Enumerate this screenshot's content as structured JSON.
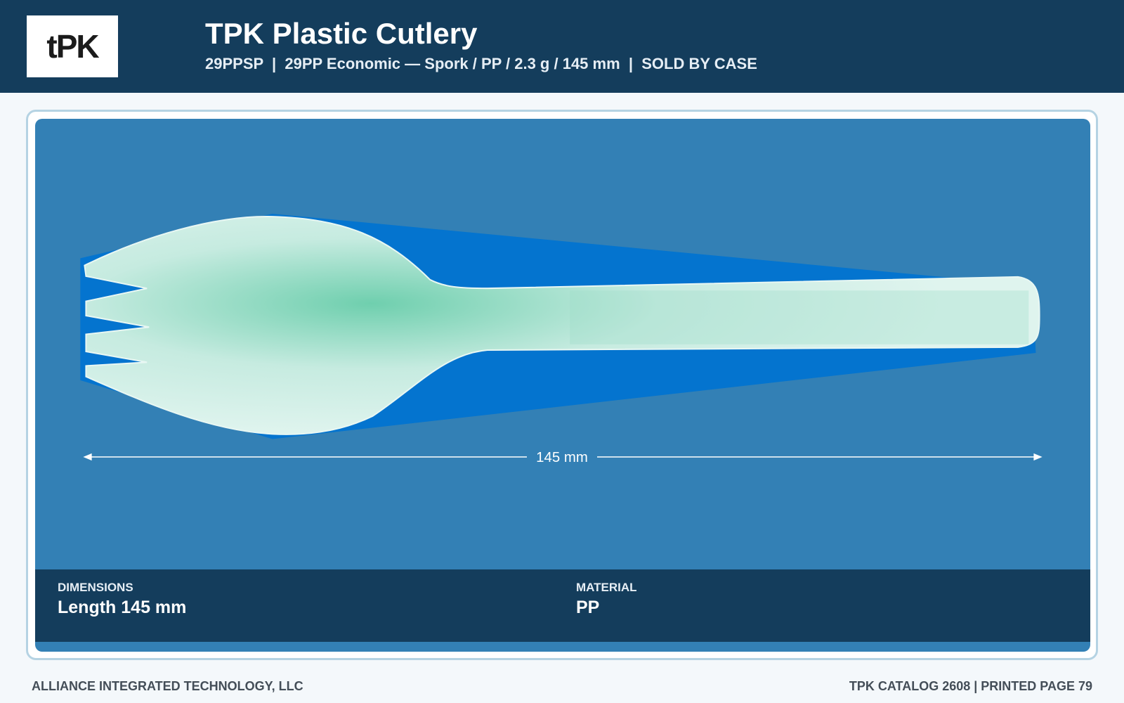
{
  "header": {
    "logo": "tPK",
    "title": "TPK Plastic Cutlery",
    "subtitle": "29PPSP  |  29PP Economic — Spork / PP / 2.3 g / 145 mm  |  SOLD BY CASE"
  },
  "product": {
    "dimension_label": "145 mm"
  },
  "specs": [
    {
      "label": "DIMENSIONS",
      "value": "Length 145 mm"
    },
    {
      "label": "MATERIAL",
      "value": "PP"
    }
  ],
  "footer": {
    "left": "ALLIANCE INTEGRATED TECHNOLOGY, LLC",
    "right": "TPK CATALOG 2608 | PRINTED PAGE 79"
  }
}
